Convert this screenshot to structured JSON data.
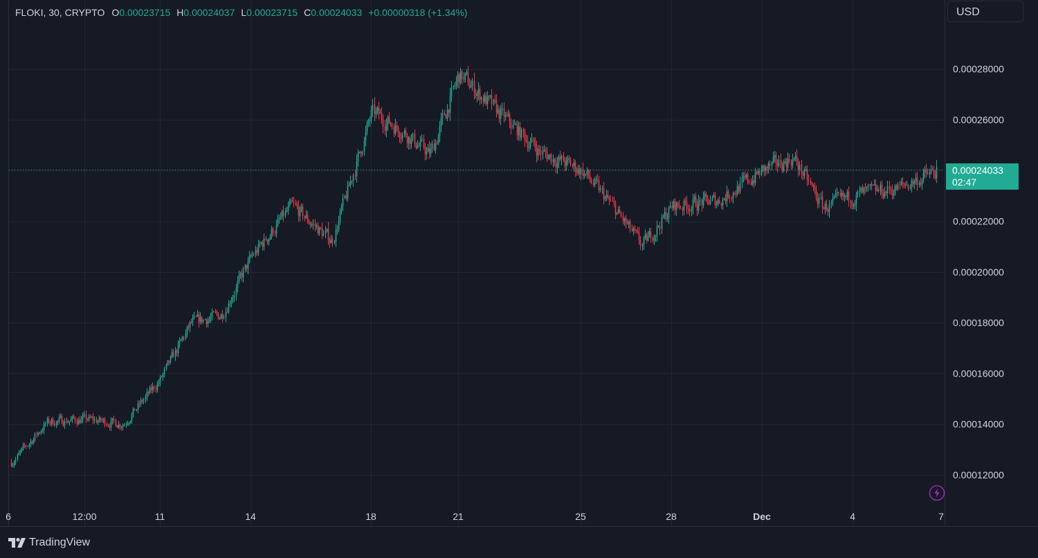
{
  "legend": {
    "symbol": "FLOKI, 30, CRYPTO",
    "open_key": "O",
    "open": "0.00023715",
    "high_key": "H",
    "high": "0.00024037",
    "low_key": "L",
    "low": "0.00023715",
    "close_key": "C",
    "close": "0.00024033",
    "change": "+0.00000318 (+1.34%)"
  },
  "currency": "USD",
  "last_price": {
    "price": "0.00024033",
    "countdown": "02:47"
  },
  "brand": "TradingView",
  "icons": {
    "logo": "tradingview-logo-icon",
    "alert": "lightning-bolt-icon"
  },
  "colors": {
    "background": "#161a25",
    "grid": "#232733",
    "up": "#22ab94",
    "down": "#f23645",
    "text": "#d1d4dc",
    "alert_icon": "#9c27b0"
  },
  "chart_data": {
    "type": "candlestick",
    "ylim": [
      0.000109,
      0.000297
    ],
    "y_ticks": [
      "0.00012000",
      "0.00014000",
      "0.00016000",
      "0.00018000",
      "0.00020000",
      "0.00022000",
      "0.00026000",
      "0.00028000"
    ],
    "x_ticks": [
      "6",
      "12:00",
      "11",
      "14",
      "18",
      "21",
      "25",
      "28",
      "Dec",
      "4",
      "7"
    ],
    "last_price_line": 0.00024033,
    "price_path": [
      {
        "x": "6",
        "y": 0.000125
      },
      {
        "x": "6",
        "y": 0.000141
      },
      {
        "x": "12:00",
        "y": 0.000142
      },
      {
        "x": "12:00",
        "y": 0.00014
      },
      {
        "x": "11",
        "y": 0.000158
      },
      {
        "x": "11",
        "y": 0.00018
      },
      {
        "x": "11",
        "y": 0.000183
      },
      {
        "x": "14",
        "y": 0.000206
      },
      {
        "x": "14",
        "y": 0.000226
      },
      {
        "x": "14",
        "y": 0.000212
      },
      {
        "x": "18",
        "y": 0.000263
      },
      {
        "x": "18",
        "y": 0.000256
      },
      {
        "x": "18",
        "y": 0.000246
      },
      {
        "x": "21",
        "y": 0.000278
      },
      {
        "x": "21",
        "y": 0.000262
      },
      {
        "x": "21",
        "y": 0.000247
      },
      {
        "x": "25",
        "y": 0.00024
      },
      {
        "x": "25",
        "y": 0.000226
      },
      {
        "x": "25",
        "y": 0.00021
      },
      {
        "x": "28",
        "y": 0.000226
      },
      {
        "x": "28",
        "y": 0.000228
      },
      {
        "x": "Dec",
        "y": 0.00024
      },
      {
        "x": "Dec",
        "y": 0.000245
      },
      {
        "x": "Dec",
        "y": 0.000225
      },
      {
        "x": "4",
        "y": 0.00023
      },
      {
        "x": "4",
        "y": 0.000233
      },
      {
        "x": "7",
        "y": 0.00024
      }
    ],
    "grid": true
  }
}
